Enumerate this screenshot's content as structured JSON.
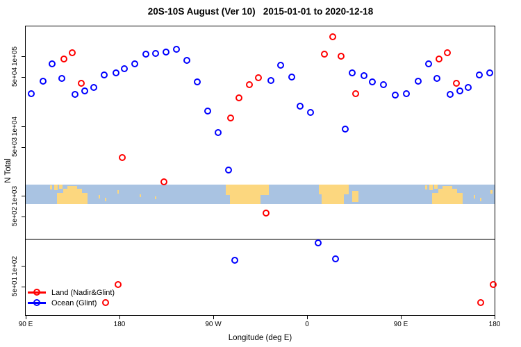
{
  "chart_data": {
    "type": "scatter",
    "title": "20S-10S August (Ver 10)   2015-01-01 to 2020-12-18",
    "xlabel": "Longitude (deg E)",
    "ylabel": "N Total",
    "x_axis": {
      "domain": [
        90,
        540
      ],
      "ticks": [
        {
          "value": 90,
          "label": "90 E"
        },
        {
          "value": 180,
          "label": "180"
        },
        {
          "value": 270,
          "label": "90 W"
        },
        {
          "value": 360,
          "label": "0"
        },
        {
          "value": 450,
          "label": "90 E"
        },
        {
          "value": 540,
          "label": "180"
        }
      ]
    },
    "y_axis": {
      "scale": "log",
      "ticks": [
        {
          "value": 100000,
          "label": "1e+05"
        },
        {
          "value": 50000,
          "label": "5e+04"
        },
        {
          "value": 10000,
          "label": "1e+04"
        },
        {
          "value": 5000,
          "label": "5e+03"
        },
        {
          "value": 1000,
          "label": "1e+03"
        },
        {
          "value": 500,
          "label": "5e+02"
        },
        {
          "value": 100,
          "label": "1e+02"
        },
        {
          "value": 50,
          "label": "5e+01"
        }
      ]
    },
    "reference_line": {
      "value": 236,
      "color": "#7a7a7a"
    },
    "map_band": {
      "top_value": 1450,
      "bottom_value": 760,
      "ocean_color": "#a9c3e2",
      "land_color": "#fcd77f",
      "land_patches": [
        {
          "lon0": 113,
          "lon1": 115,
          "top": 0.05,
          "height": 0.2
        },
        {
          "lon0": 117,
          "lon1": 120.5,
          "top": 0.0,
          "height": 0.28
        },
        {
          "lon0": 122,
          "lon1": 125,
          "top": 0.0,
          "height": 0.22
        },
        {
          "lon0": 120,
          "lon1": 149,
          "top": 0.45,
          "height": 0.55
        },
        {
          "lon0": 126,
          "lon1": 144,
          "top": 0.22,
          "height": 0.3
        },
        {
          "lon0": 130,
          "lon1": 139,
          "top": 0.08,
          "height": 0.2
        },
        {
          "lon0": 160,
          "lon1": 161.5,
          "top": 0.55,
          "height": 0.18
        },
        {
          "lon0": 166,
          "lon1": 167.5,
          "top": 0.68,
          "height": 0.18
        },
        {
          "lon0": 178,
          "lon1": 179.5,
          "top": 0.3,
          "height": 0.18
        },
        {
          "lon0": 199,
          "lon1": 200.5,
          "top": 0.5,
          "height": 0.15
        },
        {
          "lon0": 214,
          "lon1": 215.5,
          "top": 0.62,
          "height": 0.15
        },
        {
          "lon0": 282,
          "lon1": 323,
          "top": 0.0,
          "height": 0.55
        },
        {
          "lon0": 286,
          "lon1": 315,
          "top": 0.5,
          "height": 0.5
        },
        {
          "lon0": 371,
          "lon1": 400,
          "top": 0.0,
          "height": 0.52
        },
        {
          "lon0": 374,
          "lon1": 395,
          "top": 0.5,
          "height": 0.5
        },
        {
          "lon0": 403,
          "lon1": 409,
          "top": 0.32,
          "height": 0.58
        },
        {
          "lon0": 473,
          "lon1": 475,
          "top": 0.05,
          "height": 0.2
        },
        {
          "lon0": 477,
          "lon1": 480.5,
          "top": 0.0,
          "height": 0.28
        },
        {
          "lon0": 482,
          "lon1": 485,
          "top": 0.0,
          "height": 0.22
        },
        {
          "lon0": 480,
          "lon1": 509,
          "top": 0.45,
          "height": 0.55
        },
        {
          "lon0": 486,
          "lon1": 504,
          "top": 0.22,
          "height": 0.3
        },
        {
          "lon0": 490,
          "lon1": 499,
          "top": 0.08,
          "height": 0.2
        },
        {
          "lon0": 520,
          "lon1": 521.5,
          "top": 0.55,
          "height": 0.18
        },
        {
          "lon0": 526,
          "lon1": 527.5,
          "top": 0.68,
          "height": 0.18
        },
        {
          "lon0": 536,
          "lon1": 538,
          "top": 0.3,
          "height": 0.18
        }
      ]
    },
    "series": [
      {
        "name": "Land (Nadir&Glint)",
        "color": "#ff0000",
        "points": [
          [
            127,
            91000
          ],
          [
            135,
            110000
          ],
          [
            144,
            40000
          ],
          [
            167,
            29
          ],
          [
            179,
            52
          ],
          [
            183,
            3500
          ],
          [
            223,
            1550
          ],
          [
            287,
            12700
          ],
          [
            295,
            24700
          ],
          [
            305,
            38200
          ],
          [
            314,
            48000
          ],
          [
            321,
            560
          ],
          [
            377,
            105000
          ],
          [
            385,
            186000
          ],
          [
            393,
            98000
          ],
          [
            407,
            28400
          ],
          [
            487,
            91000
          ],
          [
            495,
            110000
          ],
          [
            504,
            40000
          ],
          [
            527,
            29
          ],
          [
            539,
            52
          ]
        ]
      },
      {
        "name": "Ocean (Glint)",
        "color": "#0000ff",
        "points": [
          [
            96,
            28400
          ],
          [
            107,
            42900
          ],
          [
            116,
            76000
          ],
          [
            125,
            47000
          ],
          [
            138,
            27700
          ],
          [
            147,
            31100
          ],
          [
            156,
            34900
          ],
          [
            166,
            52600
          ],
          [
            177,
            56400
          ],
          [
            185,
            64700
          ],
          [
            195,
            76000
          ],
          [
            206,
            105000
          ],
          [
            215,
            107000
          ],
          [
            225,
            112000
          ],
          [
            235,
            123000
          ],
          [
            245,
            85100
          ],
          [
            255,
            41900
          ],
          [
            265,
            16000
          ],
          [
            275,
            8000
          ],
          [
            285,
            2300
          ],
          [
            291,
            116
          ],
          [
            326,
            44000
          ],
          [
            335,
            74000
          ],
          [
            346,
            50000
          ],
          [
            354,
            19000
          ],
          [
            364,
            15300
          ],
          [
            371,
            210
          ],
          [
            388,
            122
          ],
          [
            397,
            8900
          ],
          [
            404,
            56400
          ],
          [
            415,
            51400
          ],
          [
            423,
            42000
          ],
          [
            434,
            38200
          ],
          [
            445,
            27100
          ],
          [
            456,
            28400
          ],
          [
            467,
            42900
          ],
          [
            477,
            76000
          ],
          [
            485,
            47000
          ],
          [
            498,
            27700
          ],
          [
            507,
            31100
          ],
          [
            515,
            34900
          ],
          [
            526,
            52600
          ],
          [
            536,
            56400
          ]
        ]
      }
    ],
    "legend_position": "bottom-left"
  }
}
